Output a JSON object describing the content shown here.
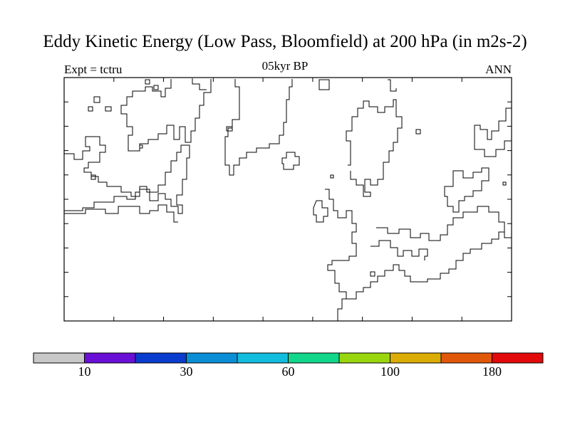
{
  "chart_data": {
    "type": "heatmap",
    "title": "Eddy Kinetic Energy (Low Pass, Bloomfield) at 200 hPa (in m2s-2)",
    "left_label": "Expt = tctru",
    "center_label": "05kyr BP",
    "right_label": "ANN",
    "values_shown": "none (all cells blank / below lowest level)",
    "colorbar": {
      "levels": [
        10,
        20,
        30,
        45,
        60,
        80,
        100,
        140,
        180
      ],
      "labels": [
        "10",
        "30",
        "60",
        "100",
        "180"
      ],
      "colors": [
        "#c8c8c8",
        "#6a0fd6",
        "#0a3ccd",
        "#0a8ed6",
        "#12bcdc",
        "#12d68a",
        "#9ad60e",
        "#dcac06",
        "#e2580a",
        "#e20a0a"
      ]
    }
  }
}
